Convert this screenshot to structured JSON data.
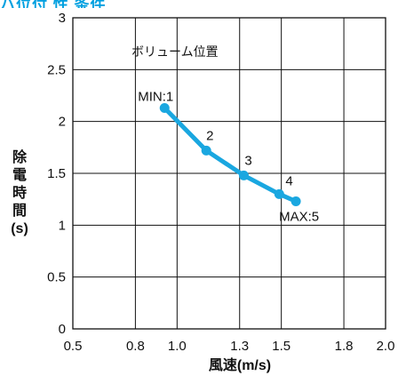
{
  "title_fragment": "ハ位付 性 条件",
  "chart_data": {
    "type": "line",
    "xlabel": "風速(m/s)",
    "ylabel": "除電時間(s)",
    "ylabel_chars": [
      "除",
      "電",
      "時",
      "間",
      "(s)"
    ],
    "annotation": "ボリューム位置",
    "xlim": [
      0.5,
      2.0
    ],
    "ylim": [
      0,
      3
    ],
    "x_tick_values": [
      0.5,
      0.8,
      1.0,
      1.3,
      1.5,
      1.8,
      2.0
    ],
    "x_tick_labels": [
      "0.5",
      "0.8",
      "1.0",
      "1.3",
      "1.5",
      "1.8",
      "2.0"
    ],
    "y_tick_values": [
      0,
      0.5,
      1,
      1.5,
      2,
      2.5,
      3
    ],
    "y_tick_labels": [
      "0",
      "0.5",
      "1",
      "1.5",
      "2",
      "2.5",
      "3"
    ],
    "grid": true,
    "line_color": "#1aa7e0",
    "series": [
      {
        "x": [
          0.94,
          1.14,
          1.32,
          1.49,
          1.57
        ],
        "y": [
          2.13,
          1.72,
          1.48,
          1.3,
          1.23
        ],
        "labels": [
          "MIN:1",
          "2",
          "3",
          "4",
          "MAX:5"
        ]
      }
    ]
  }
}
